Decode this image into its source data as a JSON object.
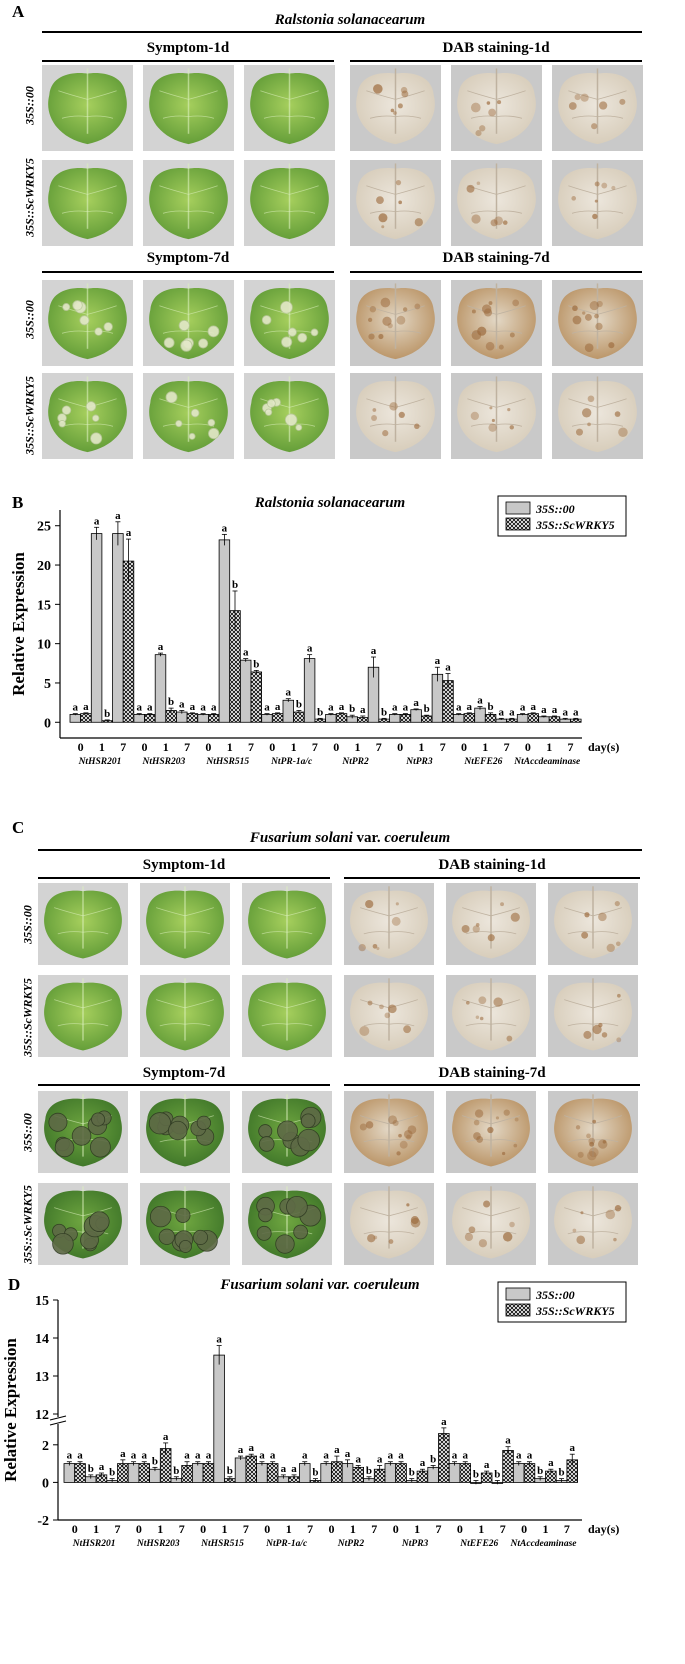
{
  "panel_a": {
    "letter": "A",
    "title": "Ralstonia solanacearum",
    "symptom_1d": "Symptom-1d",
    "dab_1d": "DAB staining-1d",
    "symptom_7d": "Symptom-7d",
    "dab_7d": "DAB staining-7d",
    "row_control": "35S::00",
    "row_transgenic": "35S::ScWRKY5"
  },
  "panel_c": {
    "letter": "C",
    "title_italic": "Fusarium solani",
    "title_normal": " var. ",
    "title_italic2": "coeruleum",
    "symptom_1d": "Symptom-1d",
    "dab_1d": "DAB staining-1d",
    "symptom_7d": "Symptom-7d",
    "dab_7d": "DAB staining-7d",
    "row_control": "35S::00",
    "row_transgenic": "35S::ScWRKY5"
  },
  "colors": {
    "leaf_light": "#8fbf4e",
    "leaf_dark": "#4e8a32",
    "leaf_bg": "#d2d2d2",
    "dab_leaf": "#e6ddd0",
    "dab_stain": "#9c6a3c",
    "bar_gray": "#c8c8c8"
  },
  "chart_data": [
    {
      "letter": "B",
      "type": "bar",
      "title": "Ralstonia solanacearum",
      "ylabel": "Relative Expression",
      "xlabel": "day(s)",
      "ylim": [
        -2,
        27
      ],
      "yticks": [
        0,
        5,
        10,
        15,
        20,
        25
      ],
      "days": [
        "0",
        "1",
        "7"
      ],
      "genes": [
        "NtHSR201",
        "NtHSR203",
        "NtHSR515",
        "NtPR-1a/c",
        "NtPR2",
        "NtPR3",
        "NtEFE26",
        "NtAccdeaminase"
      ],
      "legend": [
        "35S::00",
        "35S::ScWRKY5"
      ],
      "series": [
        {
          "name": "35S::00",
          "values": [
            1.0,
            24.0,
            24.0,
            1.0,
            8.6,
            1.3,
            1.0,
            23.2,
            7.9,
            1.0,
            2.8,
            8.1,
            1.0,
            0.7,
            7.0,
            1.0,
            1.6,
            6.1,
            1.0,
            1.8,
            0.4,
            1.0,
            0.7,
            0.4
          ],
          "errors": [
            0.1,
            0.8,
            1.5,
            0.1,
            0.2,
            0.2,
            0.1,
            0.7,
            0.2,
            0.1,
            0.2,
            0.5,
            0.1,
            0.2,
            1.3,
            0.1,
            0.1,
            0.9,
            0.1,
            0.2,
            0.1,
            0.1,
            0.1,
            0.1
          ],
          "labels": [
            "a",
            "a",
            "a",
            "a",
            "a",
            "a",
            "a",
            "a",
            "a",
            "a",
            "a",
            "a",
            "a",
            "b",
            "a",
            "a",
            "a",
            "a",
            "a",
            "a",
            "a",
            "a",
            "a",
            "a"
          ]
        },
        {
          "name": "35S::ScWRKY5",
          "values": [
            1.1,
            0.2,
            20.5,
            1.0,
            1.5,
            1.1,
            1.0,
            14.2,
            6.4,
            1.1,
            1.3,
            0.4,
            1.1,
            0.6,
            0.4,
            1.0,
            0.8,
            5.3,
            1.1,
            1.0,
            0.4,
            1.1,
            0.7,
            0.4
          ],
          "errors": [
            0.1,
            0.1,
            2.8,
            0.1,
            0.3,
            0.1,
            0.1,
            2.5,
            0.2,
            0.1,
            0.2,
            0.1,
            0.1,
            0.2,
            0.1,
            0.1,
            0.1,
            0.9,
            0.1,
            0.2,
            0.1,
            0.1,
            0.1,
            0.1
          ],
          "labels": [
            "a",
            "b",
            "a",
            "a",
            "b",
            "a",
            "a",
            "b",
            "b",
            "a",
            "b",
            "b",
            "a",
            "a",
            "b",
            "a",
            "b",
            "a",
            "a",
            "b",
            "a",
            "a",
            "a",
            "a"
          ]
        }
      ]
    },
    {
      "letter": "D",
      "type": "bar",
      "title": "Fusarium solani var. coeruleum",
      "ylabel": "Relative Expression",
      "xlabel": "day(s)",
      "ylim": [
        -2,
        15
      ],
      "axis_break": [
        3,
        12
      ],
      "yticks": [
        -2,
        0,
        2,
        12,
        13,
        14,
        15
      ],
      "days": [
        "0",
        "1",
        "7"
      ],
      "genes": [
        "NtHSR201",
        "NtHSR203",
        "NtHSR515",
        "NtPR-1a/c",
        "NtPR2",
        "NtPR3",
        "NtEFE26",
        "NtAccdeaminase"
      ],
      "legend": [
        "35S::00",
        "35S::ScWRKY5"
      ],
      "series": [
        {
          "name": "35S::00",
          "values": [
            1.0,
            0.3,
            0.1,
            1.0,
            0.7,
            0.2,
            1.0,
            13.55,
            1.3,
            1.0,
            0.3,
            1.0,
            1.0,
            1.0,
            0.2,
            1.0,
            0.1,
            0.8,
            1.0,
            0.0,
            0.0,
            1.0,
            0.2,
            0.1
          ],
          "errors": [
            0.1,
            0.1,
            0.1,
            0.1,
            0.1,
            0.1,
            0.1,
            0.25,
            0.1,
            0.1,
            0.1,
            0.1,
            0.1,
            0.2,
            0.1,
            0.1,
            0.1,
            0.1,
            0.1,
            0.1,
            0.1,
            0.1,
            0.1,
            0.1
          ],
          "labels": [
            "a",
            "b",
            "b",
            "a",
            "b",
            "b",
            "a",
            "a",
            "a",
            "a",
            "a",
            "a",
            "a",
            "a",
            "b",
            "a",
            "b",
            "b",
            "a",
            "b",
            "b",
            "a",
            "b",
            "b"
          ]
        },
        {
          "name": "35S::ScWRKY5",
          "values": [
            1.0,
            0.4,
            1.0,
            1.0,
            1.8,
            0.9,
            1.0,
            0.2,
            1.4,
            1.0,
            0.3,
            0.1,
            1.1,
            0.8,
            0.7,
            1.0,
            0.6,
            2.6,
            1.0,
            0.5,
            1.7,
            1.0,
            0.6,
            1.2
          ],
          "errors": [
            0.1,
            0.1,
            0.2,
            0.1,
            0.3,
            0.2,
            0.1,
            0.1,
            0.1,
            0.1,
            0.1,
            0.1,
            0.3,
            0.1,
            0.2,
            0.1,
            0.1,
            0.3,
            0.1,
            0.1,
            0.2,
            0.1,
            0.1,
            0.3
          ],
          "labels": [
            "a",
            "a",
            "a",
            "a",
            "a",
            "a",
            "a",
            "b",
            "a",
            "a",
            "a",
            "b",
            "a",
            "a",
            "a",
            "a",
            "a",
            "a",
            "a",
            "a",
            "a",
            "a",
            "a",
            "a"
          ]
        }
      ]
    }
  ]
}
